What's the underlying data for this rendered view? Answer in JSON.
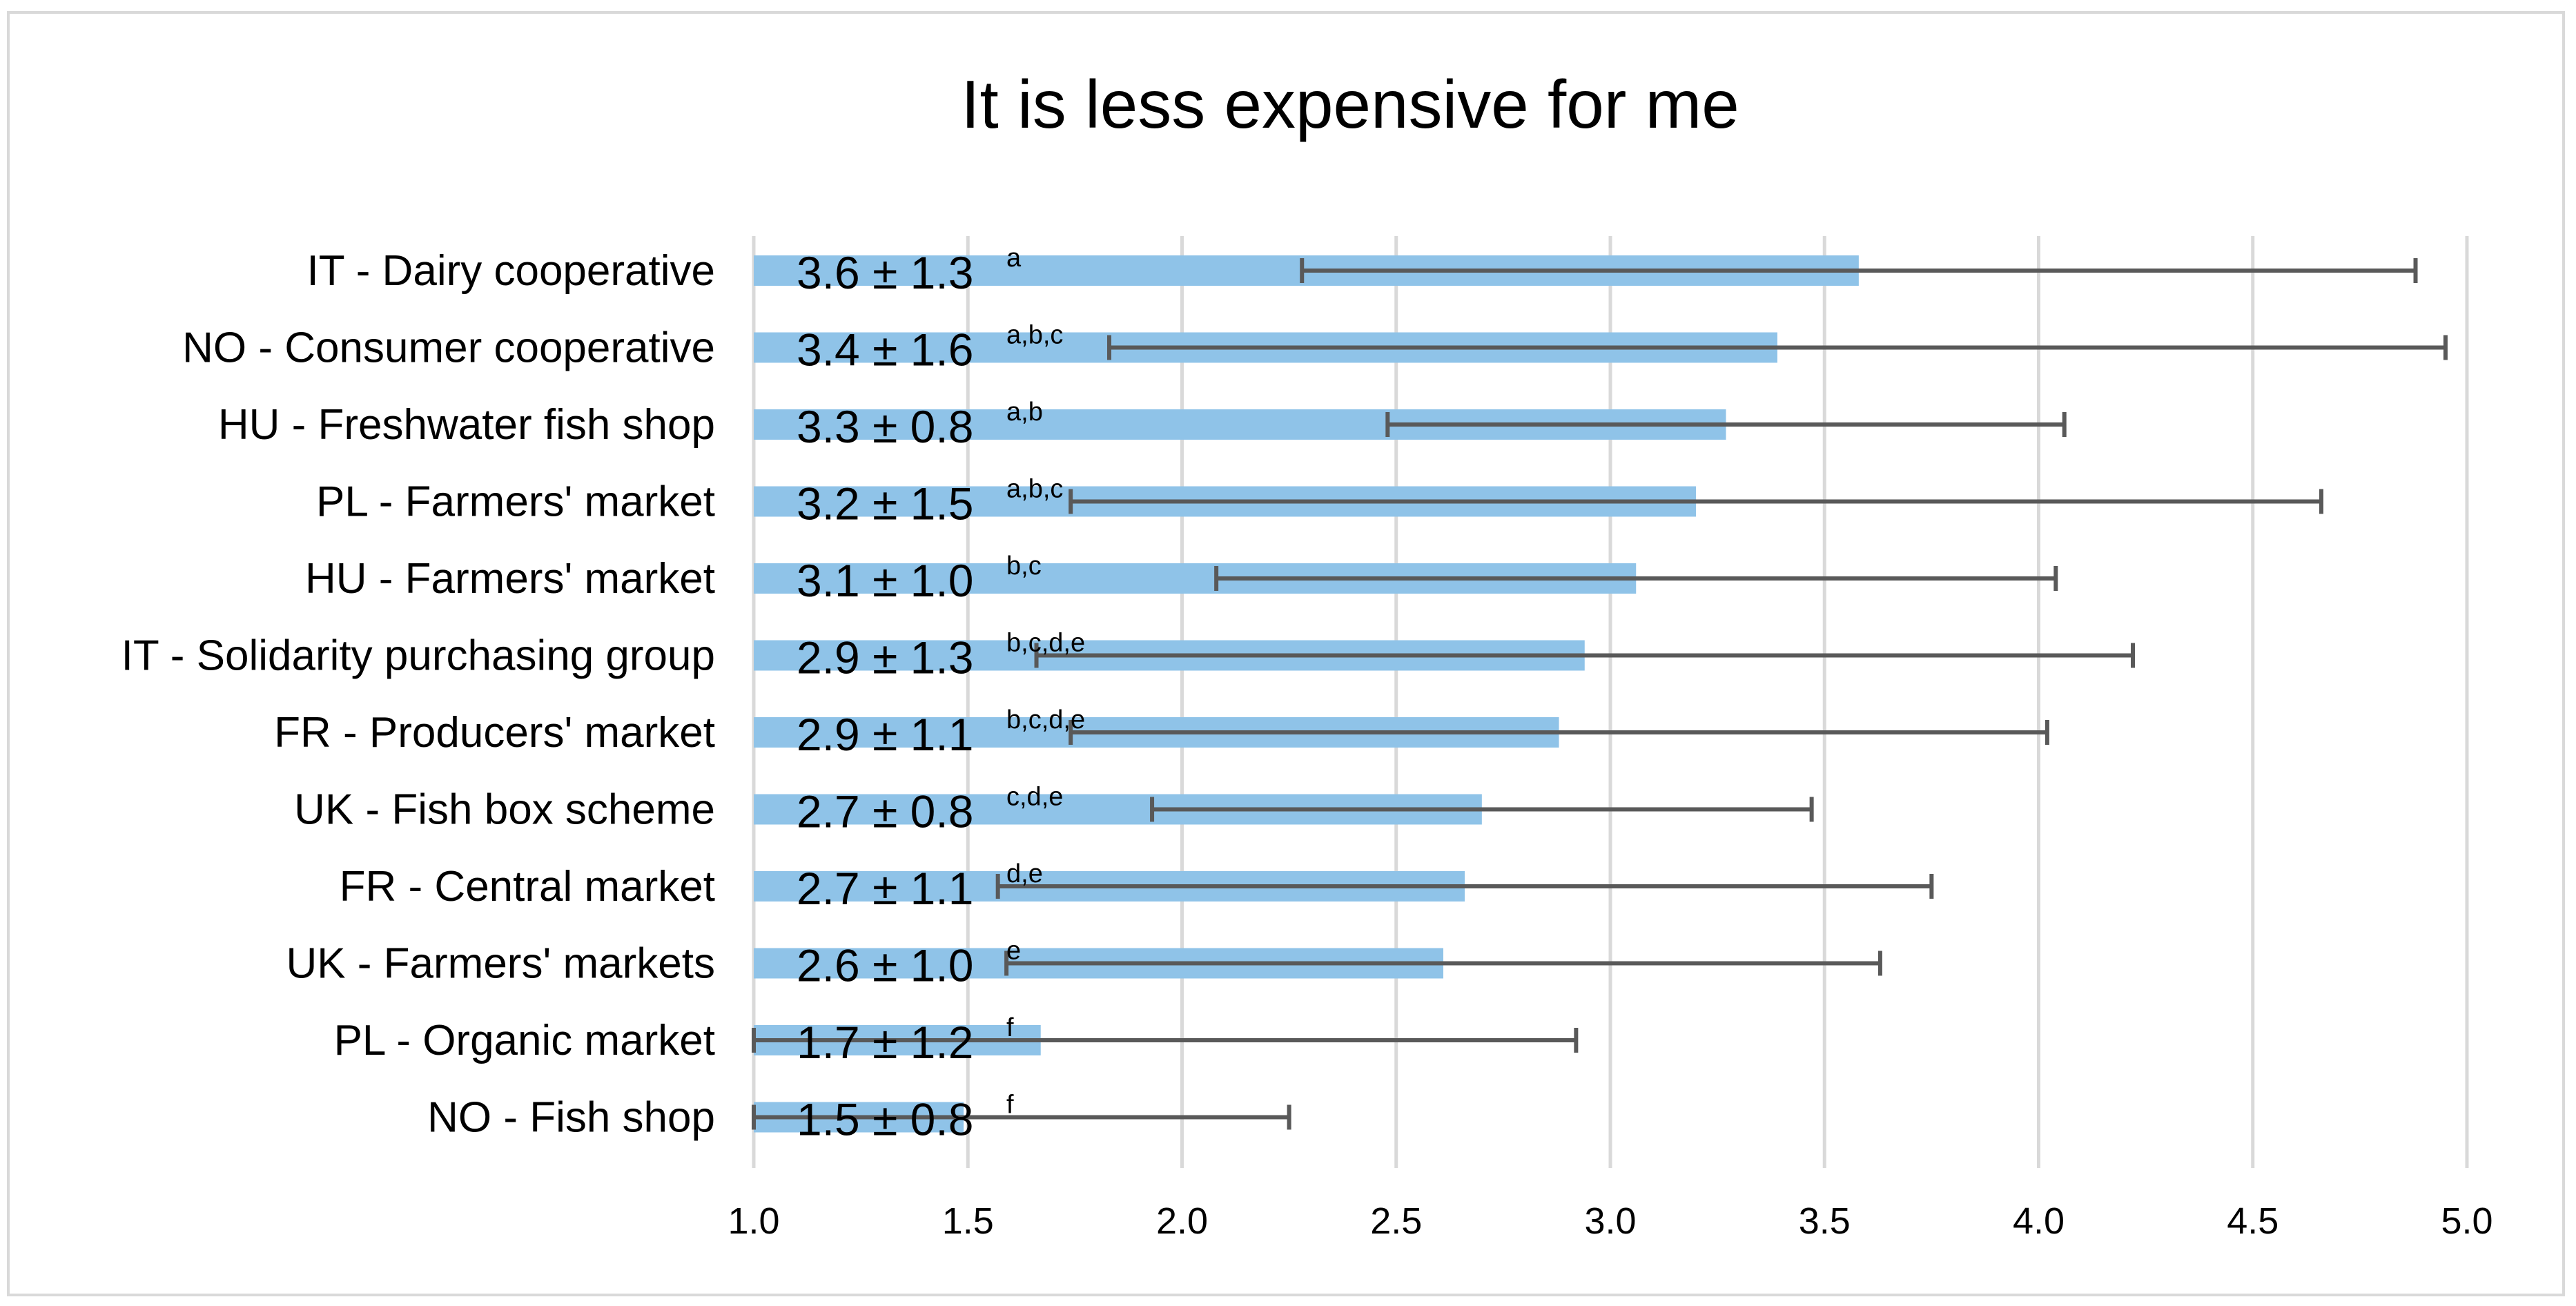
{
  "chart_data": {
    "type": "bar",
    "orientation": "horizontal",
    "title": "It is less expensive for me",
    "xlabel": "",
    "ylabel": "",
    "xlim": [
      1.0,
      5.0
    ],
    "xticks": [
      "1.0",
      "1.5",
      "2.0",
      "2.5",
      "3.0",
      "3.5",
      "4.0",
      "4.5",
      "5.0"
    ],
    "grid": "vertical",
    "bar_color": "#8fc3e8",
    "error_color": "#595959",
    "categories": [
      "IT - Dairy cooperative",
      "NO - Consumer cooperative",
      "HU - Freshwater fish shop",
      "PL - Farmers' market",
      "HU - Farmers' market",
      "IT - Solidarity purchasing group",
      "FR - Producers' market",
      "UK -  Fish box scheme",
      "FR - Central market",
      "UK - Farmers' markets",
      "PL - Organic market",
      "NO - Fish shop"
    ],
    "values": [
      3.58,
      3.39,
      3.27,
      3.2,
      3.06,
      2.94,
      2.88,
      2.7,
      2.66,
      2.61,
      1.67,
      1.49
    ],
    "errors": [
      1.3,
      1.56,
      0.79,
      1.46,
      0.98,
      1.28,
      1.14,
      0.77,
      1.09,
      1.02,
      1.25,
      0.76
    ],
    "data_labels": [
      "3.6 ± 1.3",
      "3.4 ± 1.6",
      "3.3 ± 0.8",
      "3.2 ± 1.5",
      "3.1 ± 1.0",
      "2.9 ± 1.3",
      "2.9 ± 1.1",
      "2.7 ± 0.8",
      "2.7 ± 1.1",
      "2.6 ± 1.0",
      "1.7 ± 1.2",
      "1.5 ± 0.8"
    ],
    "significance_letters": [
      "a",
      "a,b,c",
      "a,b",
      "a,b,c",
      "b,c",
      "b,c,d,e",
      "b,c,d,e",
      "c,d,e",
      "d,e",
      "e",
      "f",
      "f"
    ]
  }
}
